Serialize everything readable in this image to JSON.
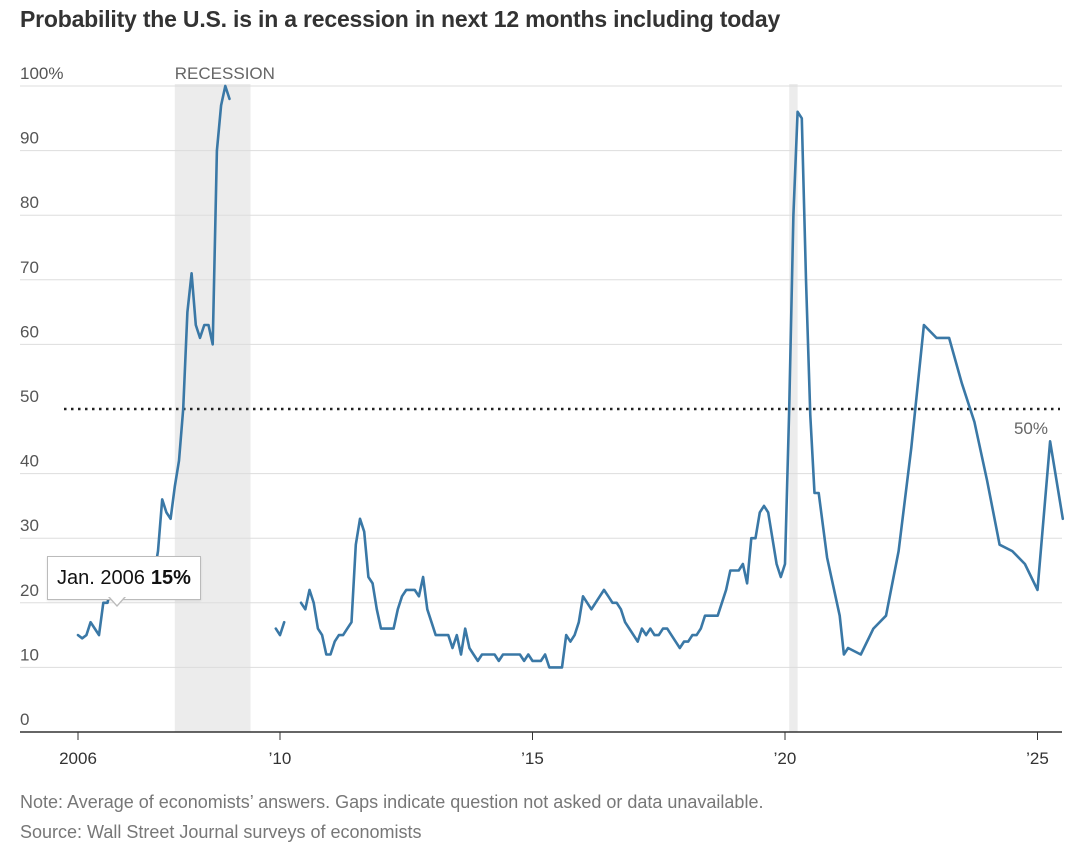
{
  "title": "Probability the U.S. is in a recession in next 12 months including today",
  "tooltip": {
    "date": "Jan. 2006",
    "value": "15%"
  },
  "note": "Note: Average of economists’ answers. Gaps indicate question not asked or data unavailable.",
  "source": "Source: Wall Street Journal surveys of economists",
  "colors": {
    "line": "#3a78a6",
    "recession": "#ececec",
    "grid": "#dddddd",
    "axis": "#333333"
  },
  "chart_data": {
    "type": "line",
    "title": "Probability the U.S. is in a recession in next 12 months including today",
    "xlabel": "",
    "ylabel": "",
    "ylim": [
      0,
      100
    ],
    "xlim": [
      "2006-01",
      "2025-09"
    ],
    "y_ticks": [
      {
        "value": 0,
        "label": "0"
      },
      {
        "value": 10,
        "label": "10"
      },
      {
        "value": 20,
        "label": "20"
      },
      {
        "value": 30,
        "label": "30"
      },
      {
        "value": 40,
        "label": "40"
      },
      {
        "value": 50,
        "label": "50"
      },
      {
        "value": 60,
        "label": "60"
      },
      {
        "value": 70,
        "label": "70"
      },
      {
        "value": 80,
        "label": "80"
      },
      {
        "value": 90,
        "label": "90"
      },
      {
        "value": 100,
        "label": "100%"
      }
    ],
    "x_ticks": [
      {
        "date": "2006-01",
        "label": "2006"
      },
      {
        "date": "2010-01",
        "label": "’10"
      },
      {
        "date": "2015-01",
        "label": "’15"
      },
      {
        "date": "2020-01",
        "label": "’20"
      },
      {
        "date": "2025-01",
        "label": "’25"
      }
    ],
    "recession_bands": [
      {
        "start": "2007-12",
        "end": "2009-06",
        "label": "RECESSION"
      },
      {
        "start": "2020-02",
        "end": "2020-04",
        "label": ""
      }
    ],
    "reference_line": {
      "value": 50,
      "label": "50%",
      "style": "dotted"
    },
    "grid": true,
    "series": [
      {
        "segments": [
          [
            [
              "2006-01",
              15
            ],
            [
              "2006-02",
              14.5
            ],
            [
              "2006-03",
              15
            ],
            [
              "2006-04",
              17
            ],
            [
              "2006-05",
              16
            ],
            [
              "2006-06",
              15
            ],
            [
              "2006-07",
              20
            ],
            [
              "2006-08",
              20
            ],
            [
              "2006-09",
              23
            ],
            [
              "2006-10",
              25
            ],
            [
              "2006-11",
              25
            ],
            [
              "2006-12",
              26
            ],
            [
              "2007-01",
              27
            ],
            [
              "2007-02",
              25
            ],
            [
              "2007-03",
              25
            ],
            [
              "2007-04",
              24
            ],
            [
              "2007-05",
              24
            ],
            [
              "2007-06",
              24
            ],
            [
              "2007-07",
              24
            ],
            [
              "2007-08",
              28
            ],
            [
              "2007-09",
              36
            ],
            [
              "2007-10",
              34
            ],
            [
              "2007-11",
              33
            ],
            [
              "2007-12",
              38
            ],
            [
              "2008-01",
              42
            ],
            [
              "2008-02",
              50
            ],
            [
              "2008-03",
              65
            ],
            [
              "2008-04",
              71
            ],
            [
              "2008-05",
              63
            ],
            [
              "2008-06",
              61
            ],
            [
              "2008-07",
              63
            ],
            [
              "2008-08",
              63
            ],
            [
              "2008-09",
              60
            ],
            [
              "2008-10",
              90
            ],
            [
              "2008-11",
              97
            ],
            [
              "2008-12",
              100
            ],
            [
              "2009-01",
              98
            ]
          ],
          [
            [
              "2009-12",
              16
            ],
            [
              "2010-01",
              15
            ],
            [
              "2010-02",
              17
            ]
          ],
          [
            [
              "2010-06",
              20
            ],
            [
              "2010-07",
              19
            ],
            [
              "2010-08",
              22
            ],
            [
              "2010-09",
              20
            ],
            [
              "2010-10",
              16
            ],
            [
              "2010-11",
              15
            ],
            [
              "2010-12",
              12
            ],
            [
              "2011-01",
              12
            ],
            [
              "2011-02",
              14
            ],
            [
              "2011-03",
              15
            ],
            [
              "2011-04",
              15
            ],
            [
              "2011-05",
              16
            ],
            [
              "2011-06",
              17
            ],
            [
              "2011-07",
              29
            ],
            [
              "2011-08",
              33
            ],
            [
              "2011-09",
              31
            ],
            [
              "2011-10",
              24
            ],
            [
              "2011-11",
              23
            ],
            [
              "2011-12",
              19
            ],
            [
              "2012-01",
              16
            ],
            [
              "2012-02",
              16
            ],
            [
              "2012-03",
              16
            ],
            [
              "2012-04",
              16
            ],
            [
              "2012-05",
              19
            ],
            [
              "2012-06",
              21
            ],
            [
              "2012-07",
              22
            ],
            [
              "2012-08",
              22
            ],
            [
              "2012-09",
              22
            ],
            [
              "2012-10",
              21
            ],
            [
              "2012-11",
              24
            ],
            [
              "2012-12",
              19
            ],
            [
              "2013-01",
              17
            ],
            [
              "2013-02",
              15
            ],
            [
              "2013-03",
              15
            ],
            [
              "2013-04",
              15
            ],
            [
              "2013-05",
              15
            ],
            [
              "2013-06",
              13
            ],
            [
              "2013-07",
              15
            ],
            [
              "2013-08",
              12
            ],
            [
              "2013-09",
              16
            ],
            [
              "2013-10",
              13
            ],
            [
              "2013-11",
              12
            ],
            [
              "2013-12",
              11
            ],
            [
              "2014-01",
              12
            ],
            [
              "2014-02",
              12
            ],
            [
              "2014-03",
              12
            ],
            [
              "2014-04",
              12
            ],
            [
              "2014-05",
              11
            ],
            [
              "2014-06",
              12
            ],
            [
              "2014-07",
              12
            ],
            [
              "2014-08",
              12
            ],
            [
              "2014-09",
              12
            ],
            [
              "2014-10",
              12
            ],
            [
              "2014-11",
              11
            ],
            [
              "2014-12",
              12
            ],
            [
              "2015-01",
              11
            ],
            [
              "2015-02",
              11
            ],
            [
              "2015-03",
              11
            ],
            [
              "2015-04",
              12
            ],
            [
              "2015-05",
              10
            ],
            [
              "2015-06",
              10
            ],
            [
              "2015-07",
              10
            ],
            [
              "2015-08",
              10
            ],
            [
              "2015-09",
              15
            ],
            [
              "2015-10",
              14
            ],
            [
              "2015-11",
              15
            ],
            [
              "2015-12",
              17
            ],
            [
              "2016-01",
              21
            ],
            [
              "2016-02",
              20
            ],
            [
              "2016-03",
              19
            ],
            [
              "2016-04",
              20
            ],
            [
              "2016-05",
              21
            ],
            [
              "2016-06",
              22
            ],
            [
              "2016-07",
              21
            ],
            [
              "2016-08",
              20
            ],
            [
              "2016-09",
              20
            ],
            [
              "2016-10",
              19
            ],
            [
              "2016-11",
              17
            ],
            [
              "2016-12",
              16
            ],
            [
              "2017-01",
              15
            ],
            [
              "2017-02",
              14
            ],
            [
              "2017-03",
              16
            ],
            [
              "2017-04",
              15
            ],
            [
              "2017-05",
              16
            ],
            [
              "2017-06",
              15
            ],
            [
              "2017-07",
              15
            ],
            [
              "2017-08",
              16
            ],
            [
              "2017-09",
              16
            ],
            [
              "2017-10",
              15
            ],
            [
              "2017-11",
              14
            ],
            [
              "2017-12",
              13
            ],
            [
              "2018-01",
              14
            ],
            [
              "2018-02",
              14
            ],
            [
              "2018-03",
              15
            ],
            [
              "2018-04",
              15
            ],
            [
              "2018-05",
              16
            ],
            [
              "2018-06",
              18
            ],
            [
              "2018-07",
              18
            ],
            [
              "2018-08",
              18
            ],
            [
              "2018-09",
              18
            ],
            [
              "2018-10",
              20
            ],
            [
              "2018-11",
              22
            ],
            [
              "2018-12",
              25
            ],
            [
              "2019-01",
              25
            ],
            [
              "2019-02",
              25
            ],
            [
              "2019-03",
              26
            ],
            [
              "2019-04",
              23
            ],
            [
              "2019-05",
              30
            ],
            [
              "2019-06",
              30
            ],
            [
              "2019-07",
              34
            ],
            [
              "2019-08",
              35
            ],
            [
              "2019-09",
              34
            ],
            [
              "2019-10",
              30
            ],
            [
              "2019-11",
              26
            ],
            [
              "2019-12",
              24
            ],
            [
              "2020-01",
              26
            ],
            [
              "2020-02",
              50
            ],
            [
              "2020-03",
              80
            ],
            [
              "2020-04",
              96
            ],
            [
              "2020-05",
              95
            ],
            [
              "2020-06",
              70
            ],
            [
              "2020-07",
              49
            ],
            [
              "2020-08",
              37
            ],
            [
              "2020-09",
              37
            ],
            [
              "2020-10",
              32
            ],
            [
              "2020-11",
              27
            ],
            [
              "2020-12",
              24
            ],
            [
              "2021-01",
              21
            ],
            [
              "2021-02",
              18
            ],
            [
              "2021-03",
              12
            ],
            [
              "2021-04",
              13
            ],
            [
              "2021-07",
              12
            ],
            [
              "2021-10",
              16
            ],
            [
              "2022-01",
              18
            ],
            [
              "2022-04",
              28
            ],
            [
              "2022-07",
              44
            ],
            [
              "2022-10",
              63
            ],
            [
              "2023-01",
              61
            ],
            [
              "2023-04",
              61
            ],
            [
              "2023-07",
              54
            ],
            [
              "2023-10",
              48
            ],
            [
              "2024-01",
              39
            ],
            [
              "2024-04",
              29
            ],
            [
              "2024-07",
              28
            ],
            [
              "2024-10",
              26
            ],
            [
              "2025-01",
              22
            ],
            [
              "2025-04",
              45
            ],
            [
              "2025-07",
              33
            ]
          ]
        ]
      }
    ]
  }
}
